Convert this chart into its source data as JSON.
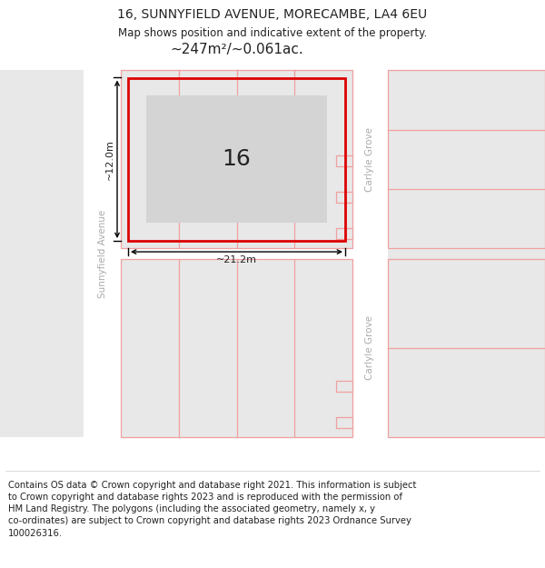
{
  "title": "16, SUNNYFIELD AVENUE, MORECAMBE, LA4 6EU",
  "subtitle": "Map shows position and indicative extent of the property.",
  "footer": "Contains OS data © Crown copyright and database right 2021. This information is subject\nto Crown copyright and database rights 2023 and is reproduced with the permission of\nHM Land Registry. The polygons (including the associated geometry, namely x, y\nco-ordinates) are subject to Crown copyright and database rights 2023 Ordnance Survey\n100026316.",
  "bg_color": "#f2f2f2",
  "road_color": "#ffffff",
  "block_color": "#e8e8e8",
  "building_color": "#d4d4d4",
  "pink_color": "#f0a0a0",
  "red_color": "#dd0000",
  "street_label_left": "Sunnyfield Avenue",
  "street_label_right_top": "Carlyle Grove",
  "street_label_right_bottom": "Carlyle Grove",
  "property_number": "16",
  "area_label": "~247m²/~0.061ac.",
  "width_label": "~21.2m",
  "height_label": "~12.0m",
  "title_fontsize": 10,
  "subtitle_fontsize": 8.5,
  "footer_fontsize": 7.2,
  "label_color": "#aaaaaa",
  "text_color": "#222222"
}
